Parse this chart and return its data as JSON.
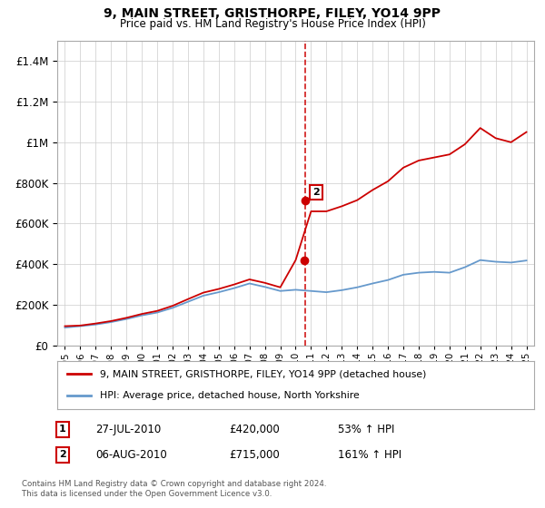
{
  "title1": "9, MAIN STREET, GRISTHORPE, FILEY, YO14 9PP",
  "title2": "Price paid vs. HM Land Registry's House Price Index (HPI)",
  "legend_label1": "9, MAIN STREET, GRISTHORPE, FILEY, YO14 9PP (detached house)",
  "legend_label2": "HPI: Average price, detached house, North Yorkshire",
  "footer": "Contains HM Land Registry data © Crown copyright and database right 2024.\nThis data is licensed under the Open Government Licence v3.0.",
  "sale1_date": "27-JUL-2010",
  "sale1_price": "£420,000",
  "sale1_hpi": "53% ↑ HPI",
  "sale2_date": "06-AUG-2010",
  "sale2_price": "£715,000",
  "sale2_hpi": "161% ↑ HPI",
  "sale1_x": 2010.57,
  "sale1_y": 420000,
  "sale2_x": 2010.6,
  "sale2_y": 715000,
  "vline_x": 2010.6,
  "red_color": "#cc0000",
  "blue_color": "#6699cc",
  "vline_color": "#cc0000",
  "ylim": [
    0,
    1500000
  ],
  "xlim": [
    1994.5,
    2025.5
  ],
  "background": "#ffffff",
  "grid_color": "#cccccc",
  "years": [
    1995,
    1996,
    1997,
    1998,
    1999,
    2000,
    2001,
    2002,
    2003,
    2004,
    2005,
    2006,
    2007,
    2008,
    2009,
    2010,
    2011,
    2012,
    2013,
    2014,
    2015,
    2016,
    2017,
    2018,
    2019,
    2020,
    2021,
    2022,
    2023,
    2024,
    2025
  ],
  "hpi_values": [
    88000,
    95000,
    103000,
    115000,
    130000,
    148000,
    162000,
    185000,
    215000,
    245000,
    262000,
    282000,
    305000,
    288000,
    268000,
    274000,
    268000,
    262000,
    272000,
    286000,
    305000,
    322000,
    348000,
    358000,
    362000,
    358000,
    385000,
    420000,
    412000,
    408000,
    418000
  ],
  "red_values": [
    95000,
    98000,
    108000,
    120000,
    136000,
    155000,
    170000,
    195000,
    228000,
    260000,
    278000,
    300000,
    325000,
    308000,
    286000,
    420000,
    660000,
    660000,
    685000,
    715000,
    765000,
    808000,
    875000,
    910000,
    925000,
    940000,
    990000,
    1070000,
    1020000,
    1000000,
    1050000
  ]
}
